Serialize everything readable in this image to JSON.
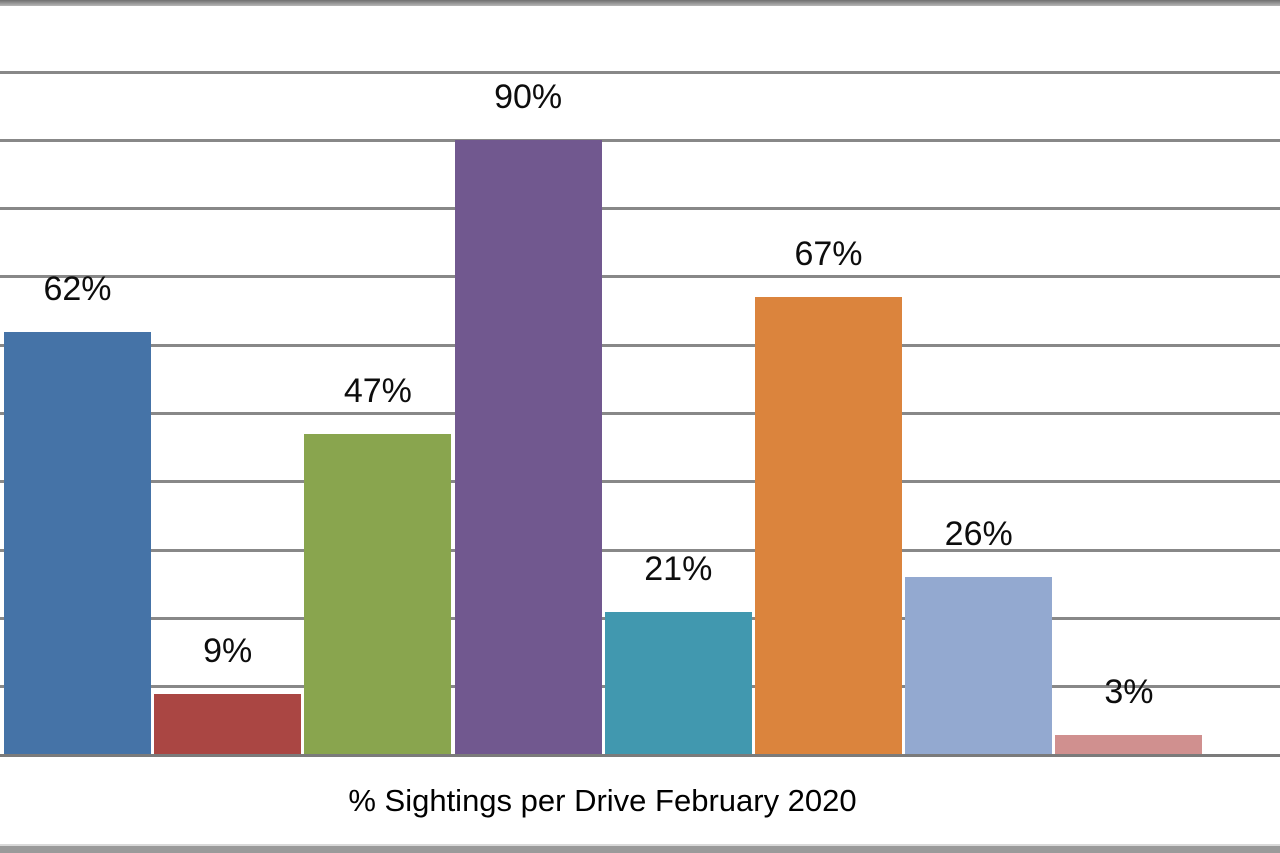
{
  "chart_data": {
    "type": "bar",
    "title": "% Sightings per Drive February 2020",
    "values": [
      62,
      9,
      47,
      90,
      21,
      67,
      26,
      3
    ],
    "data_labels": [
      "62%",
      "9%",
      "47%",
      "90%",
      "21%",
      "67%",
      "26%",
      "3%"
    ],
    "bar_colors": [
      "#4573A7",
      "#AA4643",
      "#89A54E",
      "#71588F",
      "#4198AF",
      "#DB843D",
      "#93A9D0",
      "#D0908F"
    ],
    "ylim": [
      0,
      100
    ],
    "gridline_step": 10,
    "grid": true,
    "legend_position": "none",
    "x_tick_labels_visible": false,
    "series_count": 1
  },
  "colors": {
    "background": "#ffffff",
    "gridline": "#888888",
    "axis_line": "#7b7b7b",
    "label_text": "#0d0d0d",
    "border_strip_gray": "#9a9a9a"
  }
}
